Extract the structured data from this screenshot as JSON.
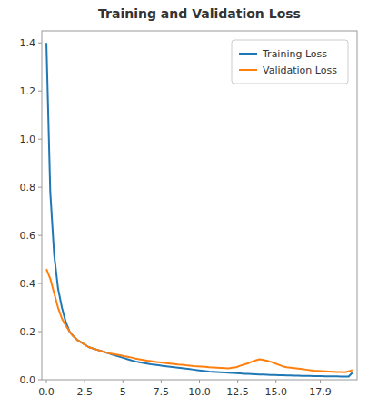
{
  "chart_data": {
    "type": "line",
    "title": "Training and Validation Loss",
    "x": [
      0,
      0.2532,
      0.5063,
      0.7595,
      1.0127,
      1.2658,
      1.519,
      1.7722,
      2.0253,
      2.2785,
      2.5316,
      2.7848,
      3.038,
      3.2911,
      3.5443,
      3.7975,
      4.0506,
      4.3038,
      4.557,
      4.8101,
      5.0633,
      5.3165,
      5.5696,
      5.8228,
      6.0759,
      6.3291,
      6.5823,
      6.8354,
      7.0886,
      7.3418,
      7.5949,
      7.8481,
      8.1013,
      8.3544,
      8.6076,
      8.8608,
      9.1139,
      9.3671,
      9.6203,
      9.8734,
      10.1266,
      10.3797,
      10.6329,
      10.8861,
      11.1392,
      11.3924,
      11.6456,
      11.8987,
      12.1519,
      12.4051,
      12.6582,
      12.9114,
      13.1646,
      13.4177,
      13.6709,
      13.9241,
      14.1772,
      14.4304,
      14.6835,
      14.9367,
      15.1899,
      15.443,
      15.6962,
      15.9494,
      16.2025,
      16.4557,
      16.7089,
      16.962,
      17.2152,
      17.4684,
      17.7215,
      17.9747,
      18.2278,
      18.481,
      18.7342,
      18.9873,
      19.2405,
      19.4937,
      19.7468,
      20
    ],
    "series": [
      {
        "name": "Training Loss",
        "color": "#1f77b4",
        "values": [
          1.4,
          0.78,
          0.52,
          0.38,
          0.3,
          0.24,
          0.2,
          0.18,
          0.165,
          0.155,
          0.145,
          0.135,
          0.13,
          0.125,
          0.12,
          0.115,
          0.11,
          0.105,
          0.1,
          0.095,
          0.09,
          0.085,
          0.08,
          0.076,
          0.073,
          0.07,
          0.067,
          0.064,
          0.062,
          0.06,
          0.058,
          0.056,
          0.054,
          0.052,
          0.05,
          0.048,
          0.046,
          0.044,
          0.042,
          0.04,
          0.038,
          0.036,
          0.034,
          0.033,
          0.032,
          0.031,
          0.03,
          0.029,
          0.028,
          0.027,
          0.026,
          0.025,
          0.025,
          0.024,
          0.023,
          0.022,
          0.022,
          0.021,
          0.02,
          0.02,
          0.019,
          0.019,
          0.018,
          0.018,
          0.017,
          0.017,
          0.016,
          0.016,
          0.016,
          0.015,
          0.015,
          0.015,
          0.014,
          0.014,
          0.014,
          0.014,
          0.013,
          0.013,
          0.013,
          0.03
        ]
      },
      {
        "name": "Validation Loss",
        "color": "#ff7f0e",
        "values": [
          0.46,
          0.42,
          0.36,
          0.3,
          0.255,
          0.225,
          0.2,
          0.18,
          0.165,
          0.155,
          0.145,
          0.135,
          0.13,
          0.125,
          0.12,
          0.115,
          0.11,
          0.108,
          0.105,
          0.102,
          0.098,
          0.095,
          0.092,
          0.088,
          0.085,
          0.082,
          0.079,
          0.077,
          0.075,
          0.073,
          0.071,
          0.069,
          0.067,
          0.065,
          0.063,
          0.062,
          0.06,
          0.059,
          0.057,
          0.056,
          0.055,
          0.054,
          0.052,
          0.051,
          0.05,
          0.049,
          0.048,
          0.047,
          0.05,
          0.052,
          0.058,
          0.063,
          0.068,
          0.075,
          0.08,
          0.085,
          0.082,
          0.078,
          0.074,
          0.068,
          0.062,
          0.056,
          0.052,
          0.05,
          0.048,
          0.046,
          0.044,
          0.042,
          0.04,
          0.038,
          0.037,
          0.036,
          0.035,
          0.034,
          0.033,
          0.032,
          0.032,
          0.031,
          0.035,
          0.04
        ]
      }
    ],
    "xlim": [
      -0.3,
      20.3
    ],
    "xticks": [
      {
        "value": 0.0,
        "label": "0.0"
      },
      2.5,
      5.0,
      7.5,
      {
        "value": 10.0,
        "label": "10.0"
      },
      12.5,
      {
        "value": 15.0,
        "label": "15.0"
      },
      17.9
    ],
    "ylim": [
      0.0,
      1.45
    ],
    "yticks": [
      {
        "value": 0.0,
        "label": "0.0"
      },
      0.2,
      0.4,
      0.6,
      0.8,
      {
        "value": 1.0,
        "label": "1.0"
      },
      1.2,
      1.4
    ],
    "legend": "upper right",
    "grid": false
  }
}
